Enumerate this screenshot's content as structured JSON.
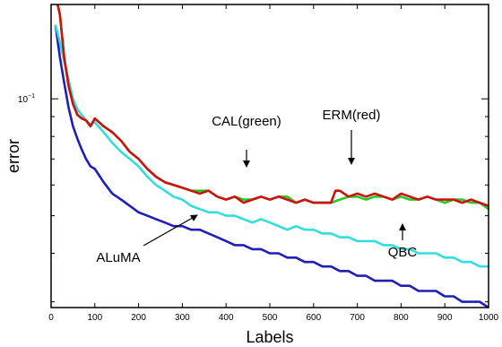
{
  "chart_data": {
    "type": "line",
    "xlabel": "Labels",
    "ylabel": "error",
    "xlim": [
      0,
      1000
    ],
    "ylim": [
      0.029,
      0.175
    ],
    "yscale": "log",
    "grid": false,
    "x_ticks": [
      0,
      100,
      200,
      300,
      400,
      500,
      600,
      700,
      800,
      900,
      1000
    ],
    "y_major_ticks": [
      {
        "value": 0.1,
        "label": "10^{-1}"
      }
    ],
    "y_minor_ticks": [
      0.03,
      0.04,
      0.05,
      0.06,
      0.07,
      0.08,
      0.09
    ],
    "annotations": [
      {
        "text": "CAL(green)",
        "series": "CAL"
      },
      {
        "text": "ERM(red)",
        "series": "ERM"
      },
      {
        "text": "QBC",
        "series": "QBC"
      },
      {
        "text": "ALuMA",
        "series": "ALuMA"
      }
    ],
    "series": [
      {
        "name": "ERM",
        "color": "#cc1111",
        "x": [
          15,
          20,
          30,
          40,
          50,
          60,
          70,
          80,
          90,
          100,
          120,
          140,
          160,
          180,
          200,
          220,
          240,
          260,
          280,
          300,
          320,
          340,
          360,
          380,
          400,
          420,
          440,
          460,
          480,
          500,
          520,
          540,
          560,
          580,
          600,
          620,
          640,
          650,
          660,
          680,
          700,
          720,
          740,
          760,
          780,
          800,
          820,
          840,
          860,
          880,
          900,
          920,
          940,
          960,
          980,
          1000
        ],
        "y": [
          0.175,
          0.165,
          0.128,
          0.108,
          0.097,
          0.091,
          0.089,
          0.088,
          0.085,
          0.089,
          0.085,
          0.082,
          0.078,
          0.073,
          0.07,
          0.066,
          0.063,
          0.061,
          0.06,
          0.059,
          0.058,
          0.057,
          0.058,
          0.056,
          0.055,
          0.056,
          0.054,
          0.055,
          0.056,
          0.055,
          0.056,
          0.055,
          0.054,
          0.055,
          0.054,
          0.054,
          0.054,
          0.058,
          0.058,
          0.056,
          0.057,
          0.056,
          0.057,
          0.056,
          0.055,
          0.057,
          0.056,
          0.055,
          0.056,
          0.055,
          0.055,
          0.055,
          0.054,
          0.055,
          0.054,
          0.053
        ]
      },
      {
        "name": "CAL",
        "color": "#22cc22",
        "x": [
          15,
          20,
          30,
          40,
          50,
          60,
          70,
          80,
          90,
          100,
          120,
          140,
          160,
          180,
          200,
          220,
          240,
          260,
          280,
          300,
          320,
          340,
          360,
          380,
          400,
          420,
          440,
          460,
          480,
          500,
          520,
          540,
          560,
          580,
          600,
          620,
          640,
          660,
          680,
          700,
          720,
          740,
          760,
          780,
          800,
          820,
          840,
          860,
          880,
          900,
          920,
          940,
          960,
          980,
          1000
        ],
        "y": [
          0.175,
          0.165,
          0.128,
          0.108,
          0.097,
          0.091,
          0.089,
          0.088,
          0.085,
          0.089,
          0.085,
          0.082,
          0.078,
          0.073,
          0.07,
          0.066,
          0.063,
          0.061,
          0.06,
          0.059,
          0.058,
          0.058,
          0.058,
          0.056,
          0.055,
          0.056,
          0.055,
          0.055,
          0.056,
          0.055,
          0.056,
          0.056,
          0.054,
          0.055,
          0.054,
          0.054,
          0.054,
          0.055,
          0.056,
          0.056,
          0.055,
          0.056,
          0.056,
          0.055,
          0.056,
          0.055,
          0.055,
          0.056,
          0.055,
          0.054,
          0.055,
          0.055,
          0.054,
          0.054,
          0.052
        ]
      },
      {
        "name": "QBC",
        "color": "#33dddd",
        "x": [
          10,
          20,
          30,
          40,
          50,
          60,
          70,
          80,
          90,
          100,
          120,
          140,
          160,
          180,
          200,
          220,
          240,
          260,
          280,
          300,
          320,
          340,
          360,
          380,
          400,
          420,
          440,
          460,
          480,
          500,
          520,
          540,
          560,
          580,
          600,
          620,
          640,
          660,
          680,
          700,
          720,
          740,
          760,
          780,
          800,
          820,
          840,
          860,
          880,
          900,
          920,
          940,
          960,
          980,
          1000
        ],
        "y": [
          0.155,
          0.14,
          0.125,
          0.112,
          0.1,
          0.094,
          0.091,
          0.088,
          0.086,
          0.087,
          0.082,
          0.077,
          0.073,
          0.07,
          0.067,
          0.063,
          0.06,
          0.058,
          0.056,
          0.055,
          0.053,
          0.052,
          0.051,
          0.051,
          0.05,
          0.05,
          0.049,
          0.048,
          0.049,
          0.048,
          0.047,
          0.046,
          0.047,
          0.046,
          0.046,
          0.045,
          0.045,
          0.044,
          0.044,
          0.043,
          0.043,
          0.043,
          0.042,
          0.042,
          0.041,
          0.041,
          0.04,
          0.04,
          0.04,
          0.039,
          0.039,
          0.038,
          0.038,
          0.037,
          0.037
        ]
      },
      {
        "name": "ALuMA",
        "color": "#1f1fb5",
        "x": [
          10,
          20,
          30,
          40,
          50,
          60,
          70,
          80,
          90,
          100,
          120,
          140,
          160,
          180,
          200,
          220,
          240,
          260,
          280,
          300,
          320,
          340,
          360,
          380,
          400,
          420,
          440,
          460,
          480,
          500,
          520,
          540,
          560,
          580,
          600,
          620,
          640,
          660,
          680,
          700,
          720,
          740,
          760,
          780,
          800,
          820,
          840,
          860,
          880,
          900,
          920,
          940,
          960,
          980,
          1000
        ],
        "y": [
          0.155,
          0.128,
          0.11,
          0.095,
          0.085,
          0.079,
          0.074,
          0.07,
          0.067,
          0.066,
          0.061,
          0.057,
          0.055,
          0.053,
          0.051,
          0.05,
          0.049,
          0.048,
          0.047,
          0.047,
          0.046,
          0.046,
          0.045,
          0.044,
          0.043,
          0.042,
          0.042,
          0.041,
          0.041,
          0.04,
          0.04,
          0.039,
          0.039,
          0.038,
          0.038,
          0.037,
          0.037,
          0.036,
          0.036,
          0.035,
          0.035,
          0.034,
          0.034,
          0.034,
          0.033,
          0.033,
          0.032,
          0.032,
          0.032,
          0.031,
          0.031,
          0.03,
          0.03,
          0.03,
          0.029
        ]
      }
    ]
  }
}
